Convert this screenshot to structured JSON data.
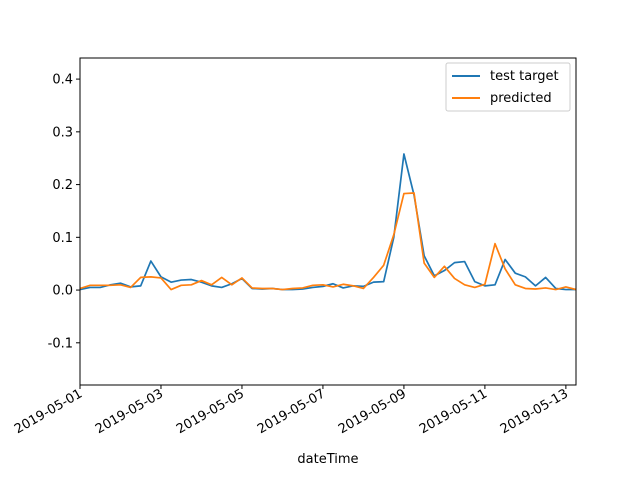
{
  "chart_data": {
    "type": "line",
    "title": "",
    "xlabel": "dateTime",
    "ylabel": "",
    "xlim": [
      "2019-05-01T00:00",
      "2019-05-13T06:00"
    ],
    "ylim": [
      -0.18,
      0.44
    ],
    "x_ticks": [
      "2019-05-01",
      "2019-05-03",
      "2019-05-05",
      "2019-05-07",
      "2019-05-09",
      "2019-05-11",
      "2019-05-13"
    ],
    "y_ticks": [
      "-0.1",
      "0.0",
      "0.1",
      "0.2",
      "0.3",
      "0.4"
    ],
    "y_tick_values": [
      -0.1,
      0.0,
      0.1,
      0.2,
      0.3,
      0.4
    ],
    "grid": false,
    "legend_position": "top-right",
    "x": [
      "2019-05-01T00:00",
      "2019-05-01T06:00",
      "2019-05-01T12:00",
      "2019-05-01T18:00",
      "2019-05-02T00:00",
      "2019-05-02T06:00",
      "2019-05-02T12:00",
      "2019-05-02T18:00",
      "2019-05-03T00:00",
      "2019-05-03T06:00",
      "2019-05-03T12:00",
      "2019-05-03T18:00",
      "2019-05-04T00:00",
      "2019-05-04T06:00",
      "2019-05-04T12:00",
      "2019-05-04T18:00",
      "2019-05-05T00:00",
      "2019-05-05T06:00",
      "2019-05-05T12:00",
      "2019-05-05T18:00",
      "2019-05-06T00:00",
      "2019-05-06T06:00",
      "2019-05-06T12:00",
      "2019-05-06T18:00",
      "2019-05-07T00:00",
      "2019-05-07T06:00",
      "2019-05-07T12:00",
      "2019-05-07T18:00",
      "2019-05-08T00:00",
      "2019-05-08T06:00",
      "2019-05-08T12:00",
      "2019-05-08T18:00",
      "2019-05-09T00:00",
      "2019-05-09T06:00",
      "2019-05-09T12:00",
      "2019-05-09T18:00",
      "2019-05-10T00:00",
      "2019-05-10T06:00",
      "2019-05-10T12:00",
      "2019-05-10T18:00",
      "2019-05-11T00:00",
      "2019-05-11T06:00",
      "2019-05-11T12:00",
      "2019-05-11T18:00",
      "2019-05-12T00:00",
      "2019-05-12T06:00",
      "2019-05-12T12:00",
      "2019-05-12T18:00",
      "2019-05-13T00:00",
      "2019-05-13T06:00"
    ],
    "series": [
      {
        "name": "test target",
        "color": "#1f77b4",
        "values": [
          0.001,
          0.005,
          0.005,
          0.01,
          0.013,
          0.006,
          0.008,
          0.055,
          0.025,
          0.015,
          0.019,
          0.02,
          0.015,
          0.008,
          0.005,
          0.012,
          0.022,
          0.003,
          0.002,
          0.003,
          0.001,
          0.001,
          0.002,
          0.005,
          0.007,
          0.012,
          0.004,
          0.008,
          0.007,
          0.015,
          0.016,
          0.1,
          0.258,
          0.18,
          0.065,
          0.027,
          0.037,
          0.052,
          0.054,
          0.016,
          0.008,
          0.01,
          0.058,
          0.032,
          0.025,
          0.008,
          0.024,
          0.003,
          0.001,
          0.001
        ]
      },
      {
        "name": "predicted",
        "color": "#ff7f0e",
        "values": [
          0.003,
          0.009,
          0.009,
          0.009,
          0.01,
          0.005,
          0.024,
          0.025,
          0.023,
          0.001,
          0.009,
          0.01,
          0.018,
          0.01,
          0.024,
          0.01,
          0.023,
          0.004,
          0.003,
          0.003,
          0.001,
          0.003,
          0.004,
          0.009,
          0.01,
          0.006,
          0.011,
          0.008,
          0.003,
          0.024,
          0.047,
          0.105,
          0.183,
          0.184,
          0.051,
          0.024,
          0.045,
          0.022,
          0.01,
          0.005,
          0.011,
          0.088,
          0.04,
          0.01,
          0.003,
          0.002,
          0.004,
          0.001,
          0.006,
          0.001
        ]
      }
    ]
  }
}
